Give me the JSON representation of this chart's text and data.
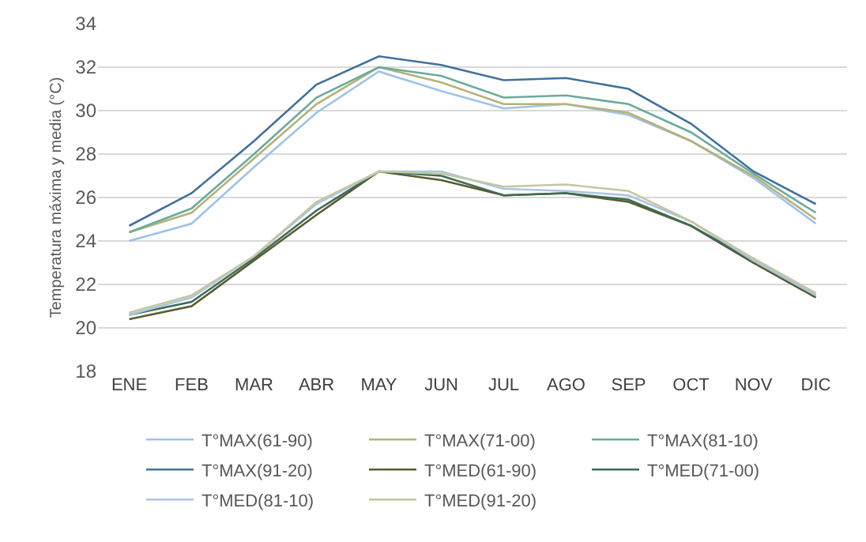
{
  "chart_data": {
    "type": "line",
    "ylabel": "Temperatura máxima y media (°C)",
    "categories": [
      "ENE",
      "FEB",
      "MAR",
      "ABR",
      "MAY",
      "JUN",
      "JUL",
      "AGO",
      "SEP",
      "OCT",
      "NOV",
      "DIC"
    ],
    "series": [
      {
        "name": "T°MAX(61-90)",
        "color": "#9dc3e6",
        "values": [
          24.0,
          24.8,
          27.4,
          29.9,
          31.8,
          30.9,
          30.1,
          30.3,
          29.8,
          28.6,
          26.9,
          24.8
        ]
      },
      {
        "name": "T°MAX(71-00)",
        "color": "#b4b27a",
        "values": [
          24.4,
          25.3,
          27.8,
          30.3,
          32.0,
          31.3,
          30.3,
          30.3,
          29.9,
          28.6,
          27.0,
          25.0
        ]
      },
      {
        "name": "T°MAX(81-10)",
        "color": "#6aab9c",
        "values": [
          24.4,
          25.5,
          28.0,
          30.6,
          32.0,
          31.6,
          30.6,
          30.7,
          30.3,
          29.0,
          27.1,
          25.3
        ]
      },
      {
        "name": "T°MAX(91-20)",
        "color": "#41719c",
        "values": [
          24.7,
          26.2,
          28.6,
          31.2,
          32.5,
          32.1,
          31.4,
          31.5,
          31.0,
          29.4,
          27.2,
          25.7
        ]
      },
      {
        "name": "T°MED(61-90)",
        "color": "#5a5a2e",
        "values": [
          20.4,
          21.0,
          23.1,
          25.2,
          27.2,
          26.8,
          26.1,
          26.2,
          25.8,
          24.7,
          23.0,
          21.4
        ]
      },
      {
        "name": "T°MED(71-00)",
        "color": "#3e6b56",
        "values": [
          20.6,
          21.2,
          23.2,
          25.4,
          27.2,
          27.0,
          26.1,
          26.2,
          25.9,
          24.7,
          23.1,
          21.5
        ]
      },
      {
        "name": "T°MED(81-10)",
        "color": "#a9c5e3",
        "values": [
          20.6,
          21.4,
          23.3,
          25.7,
          27.2,
          27.2,
          26.4,
          26.3,
          26.1,
          24.9,
          23.1,
          21.5
        ]
      },
      {
        "name": "T°MED(91-20)",
        "color": "#c4c7a0",
        "values": [
          20.7,
          21.5,
          23.3,
          25.8,
          27.2,
          27.1,
          26.5,
          26.6,
          26.3,
          24.9,
          23.2,
          21.6
        ]
      }
    ],
    "ylim": [
      18,
      34
    ],
    "yticks": [
      18,
      20,
      22,
      24,
      26,
      28,
      30,
      32,
      34
    ],
    "grid": "y",
    "legend": "bottom",
    "marker": "none",
    "line_style": "solid"
  }
}
